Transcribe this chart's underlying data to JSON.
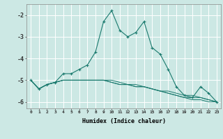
{
  "xlabel": "Humidex (Indice chaleur)",
  "ylabel": "",
  "bg_color": "#cce8e4",
  "line_color": "#1a7a6e",
  "grid_color": "#ffffff",
  "x_data": [
    0,
    1,
    2,
    3,
    4,
    5,
    6,
    7,
    8,
    9,
    10,
    11,
    12,
    13,
    14,
    15,
    16,
    17,
    18,
    19,
    20,
    21,
    22,
    23
  ],
  "series": [
    [
      -5.0,
      -5.4,
      -5.2,
      -5.1,
      -4.7,
      -4.7,
      -4.5,
      -4.3,
      -3.7,
      -2.3,
      -1.8,
      -2.7,
      -3.0,
      -2.8,
      -2.3,
      -3.5,
      -3.8,
      -4.5,
      -5.3,
      -5.7,
      -5.8,
      -5.3,
      -5.6,
      -6.0
    ],
    [
      -5.0,
      -5.4,
      -5.2,
      -5.1,
      -5.0,
      -5.0,
      -5.0,
      -5.0,
      -5.0,
      -5.0,
      -5.1,
      -5.2,
      -5.2,
      -5.3,
      -5.3,
      -5.4,
      -5.5,
      -5.6,
      -5.7,
      -5.8,
      -5.9,
      -5.9,
      -6.0,
      -6.0
    ],
    [
      -5.0,
      -5.4,
      -5.2,
      -5.1,
      -5.0,
      -5.0,
      -5.0,
      -5.0,
      -5.0,
      -5.0,
      -5.1,
      -5.2,
      -5.2,
      -5.3,
      -5.3,
      -5.4,
      -5.5,
      -5.6,
      -5.7,
      -5.8,
      -5.8,
      -5.8,
      -5.9,
      -6.0
    ],
    [
      -5.0,
      -5.4,
      -5.2,
      -5.1,
      -5.0,
      -5.0,
      -5.0,
      -5.0,
      -5.0,
      -5.0,
      -5.0,
      -5.1,
      -5.2,
      -5.2,
      -5.3,
      -5.4,
      -5.5,
      -5.5,
      -5.6,
      -5.7,
      -5.7,
      -5.8,
      -5.9,
      -6.0
    ]
  ],
  "ylim": [
    -6.3,
    -1.5
  ],
  "yticks": [
    -6,
    -5,
    -4,
    -3,
    -2
  ],
  "xlim": [
    -0.5,
    23.5
  ]
}
